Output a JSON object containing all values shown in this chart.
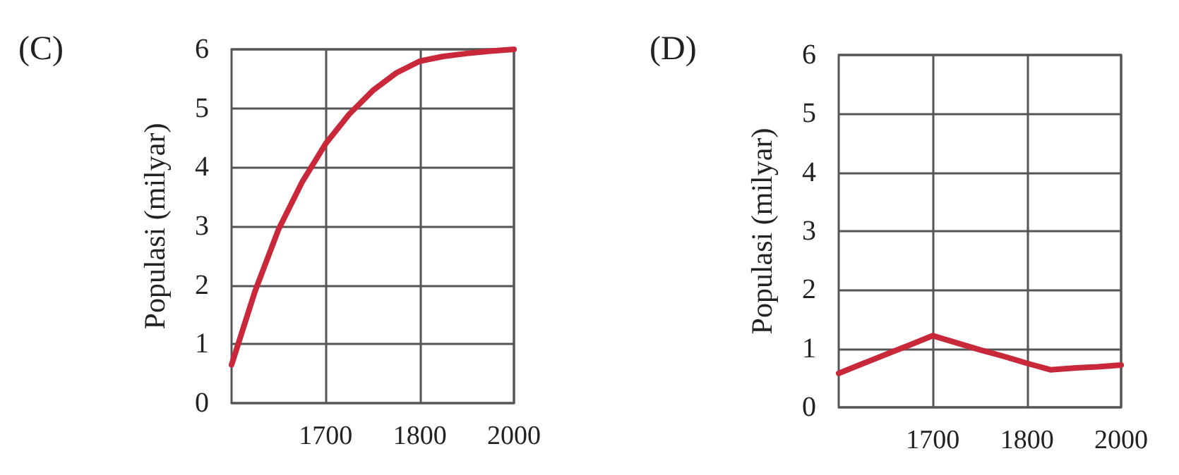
{
  "chart_data": [
    {
      "type": "line",
      "title": "(C)",
      "ylabel": "Populasi (milyar)",
      "categories": [
        null,
        null,
        null,
        null,
        "1700",
        null,
        null,
        null,
        "1800",
        null,
        null,
        null,
        "2000"
      ],
      "values": [
        0.65,
        1.9,
        2.95,
        3.75,
        4.4,
        4.9,
        5.3,
        5.6,
        5.8,
        5.88,
        5.93,
        5.97,
        6
      ],
      "color": "#c8283a",
      "ylim": [
        0,
        6
      ],
      "yticks": [
        0,
        1,
        2,
        3,
        4,
        5,
        6
      ],
      "grid": true
    },
    {
      "type": "line",
      "title": "(D)",
      "ylabel": "Populasi (milyar)",
      "categories": [
        null,
        null,
        null,
        null,
        "1700",
        null,
        null,
        null,
        "1800",
        null,
        null,
        null,
        "2000"
      ],
      "values": [
        0.58,
        0.74,
        0.9,
        1.06,
        1.22,
        1.1,
        0.98,
        0.87,
        0.75,
        0.64,
        0.67,
        0.69,
        0.72
      ],
      "color": "#c8283a",
      "ylim": [
        0,
        6
      ],
      "yticks": [
        0,
        1,
        2,
        3,
        4,
        5,
        6
      ],
      "grid": true
    }
  ]
}
